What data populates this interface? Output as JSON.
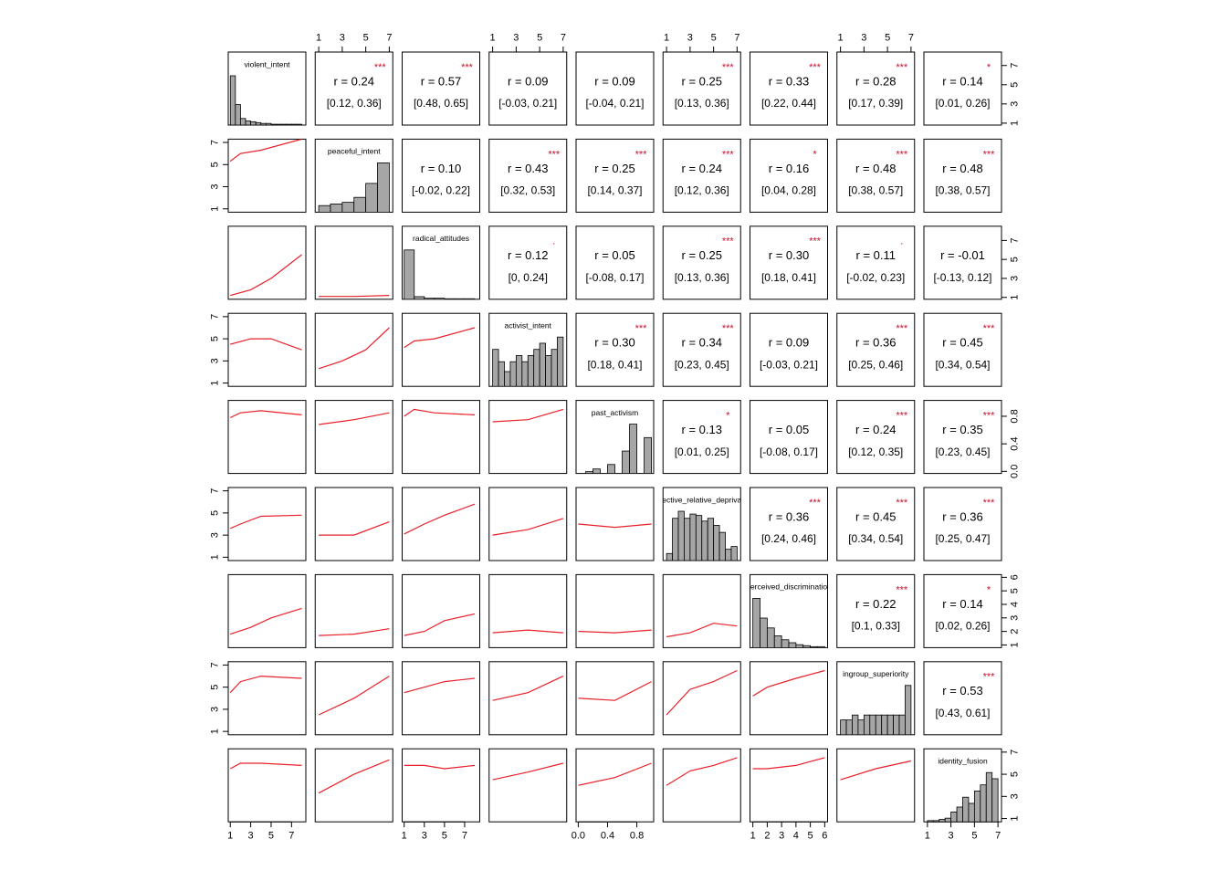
{
  "chart_data": {
    "type": "scatter-matrix",
    "variables": [
      {
        "name": "violent_intent",
        "lim": [
          0.8,
          8.4
        ],
        "ticks": [
          1,
          3,
          5,
          7
        ],
        "bins": [
          1,
          1.5,
          2,
          2.5,
          3,
          3.5,
          4,
          4.5,
          5,
          5.5,
          6,
          6.5,
          7,
          7.5,
          8
        ],
        "counts": [
          60,
          25,
          8,
          5,
          4,
          3,
          2,
          2,
          1,
          1,
          1,
          1,
          1,
          1
        ]
      },
      {
        "name": "peaceful_intent",
        "lim": [
          0.7,
          7.3
        ],
        "ticks": [
          1,
          3,
          5,
          7
        ],
        "bins": [
          1,
          2,
          3,
          4,
          5,
          6,
          7
        ],
        "counts": [
          8,
          10,
          12,
          18,
          35,
          60
        ]
      },
      {
        "name": "radical_attitudes",
        "lim": [
          0.8,
          8.5
        ],
        "ticks": [
          1,
          3,
          5,
          7
        ],
        "bins": [
          1,
          2,
          3,
          4,
          5,
          6,
          7,
          8
        ],
        "counts": [
          95,
          5,
          2,
          2,
          1,
          1,
          1
        ]
      },
      {
        "name": "activist_intent",
        "lim": [
          0.7,
          7.3
        ],
        "ticks": [
          1,
          3,
          5,
          7
        ],
        "bins": [
          1,
          1.5,
          2,
          2.5,
          3,
          3.5,
          4,
          4.5,
          5,
          5.5,
          6,
          6.5,
          7
        ],
        "counts": [
          30,
          20,
          12,
          20,
          25,
          20,
          25,
          30,
          35,
          25,
          30,
          40
        ]
      },
      {
        "name": "past_activism",
        "lim": [
          -0.03,
          1.03
        ],
        "ticks": [
          {
            "value": 0,
            "label": "0.0"
          },
          {
            "value": 0.4,
            "label": "0.4"
          },
          {
            "value": 0.8,
            "label": "0.8"
          }
        ],
        "bins": [
          0,
          0.1,
          0.2,
          0.3,
          0.4,
          0.5,
          0.6,
          0.7,
          0.8,
          0.9,
          1
        ],
        "counts": [
          0,
          2,
          5,
          0,
          10,
          0,
          25,
          55,
          0,
          40
        ]
      },
      {
        "name": "ective_relative_depriva",
        "lim": [
          0.7,
          7.3
        ],
        "ticks": [
          1,
          3,
          5,
          7
        ],
        "bins": [
          1,
          1.5,
          2,
          2.5,
          3,
          3.5,
          4,
          4.5,
          5,
          5.5,
          6,
          6.5,
          7
        ],
        "counts": [
          5,
          30,
          35,
          30,
          33,
          32,
          28,
          30,
          25,
          20,
          8,
          10
        ]
      },
      {
        "name": "erceived_discriminatio",
        "lim": [
          0.8,
          6.2
        ],
        "ticks": [
          1,
          2,
          3,
          4,
          5,
          6
        ],
        "bins": [
          1,
          1.5,
          2,
          2.5,
          3,
          3.5,
          4,
          4.5,
          5,
          5.5,
          6
        ],
        "counts": [
          50,
          30,
          20,
          12,
          8,
          5,
          3,
          2,
          1,
          1
        ]
      },
      {
        "name": "ingroup_superiority",
        "lim": [
          0.7,
          7.3
        ],
        "ticks": [
          1,
          3,
          5,
          7
        ],
        "bins": [
          1,
          1.5,
          2,
          2.5,
          3,
          3.5,
          4,
          4.5,
          5,
          5.5,
          6,
          6.5,
          7
        ],
        "counts": [
          15,
          15,
          20,
          15,
          20,
          20,
          20,
          20,
          20,
          20,
          20,
          50
        ]
      },
      {
        "name": "identity_fusion",
        "lim": [
          0.7,
          7.3
        ],
        "ticks": [
          1,
          3,
          5,
          7
        ],
        "bins": [
          1,
          1.5,
          2,
          2.5,
          3,
          3.5,
          4,
          4.5,
          5,
          5.5,
          6,
          6.5,
          7
        ],
        "counts": [
          1,
          1,
          2,
          3,
          8,
          12,
          20,
          15,
          25,
          30,
          40,
          35
        ]
      }
    ],
    "correlations": [
      {
        "row": 0,
        "col": 1,
        "r": {
          "value": 0.24,
          "label": "r = 0.24"
        },
        "ci": "[0.12, 0.36]",
        "sig": "***"
      },
      {
        "row": 0,
        "col": 2,
        "r": {
          "value": 0.57,
          "label": "r = 0.57"
        },
        "ci": "[0.48, 0.65]",
        "sig": "***"
      },
      {
        "row": 0,
        "col": 3,
        "r": {
          "value": 0.09,
          "label": "r = 0.09"
        },
        "ci": "[-0.03, 0.21]"
      },
      {
        "row": 0,
        "col": 4,
        "r": {
          "value": 0.09,
          "label": "r = 0.09"
        },
        "ci": "[-0.04, 0.21]"
      },
      {
        "row": 0,
        "col": 5,
        "r": {
          "value": 0.25,
          "label": "r = 0.25"
        },
        "ci": "[0.13, 0.36]",
        "sig": "***"
      },
      {
        "row": 0,
        "col": 6,
        "r": {
          "value": 0.33,
          "label": "r = 0.33"
        },
        "ci": "[0.22, 0.44]",
        "sig": "***"
      },
      {
        "row": 0,
        "col": 7,
        "r": {
          "value": 0.28,
          "label": "r = 0.28"
        },
        "ci": "[0.17, 0.39]",
        "sig": "***"
      },
      {
        "row": 0,
        "col": 8,
        "r": {
          "value": 0.14,
          "label": "r = 0.14"
        },
        "ci": "[0.01, 0.26]",
        "sig": "*"
      },
      {
        "row": 1,
        "col": 2,
        "r": {
          "value": 0.1,
          "label": "r = 0.10"
        },
        "ci": "[-0.02, 0.22]"
      },
      {
        "row": 1,
        "col": 3,
        "r": {
          "value": 0.43,
          "label": "r = 0.43"
        },
        "ci": "[0.32, 0.53]",
        "sig": "***"
      },
      {
        "row": 1,
        "col": 4,
        "r": {
          "value": 0.25,
          "label": "r = 0.25"
        },
        "ci": "[0.14, 0.37]",
        "sig": "***"
      },
      {
        "row": 1,
        "col": 5,
        "r": {
          "value": 0.24,
          "label": "r = 0.24"
        },
        "ci": "[0.12, 0.36]",
        "sig": "***"
      },
      {
        "row": 1,
        "col": 6,
        "r": {
          "value": 0.16,
          "label": "r = 0.16"
        },
        "ci": "[0.04, 0.28]",
        "sig": "*"
      },
      {
        "row": 1,
        "col": 7,
        "r": {
          "value": 0.48,
          "label": "r = 0.48"
        },
        "ci": "[0.38, 0.57]",
        "sig": "***"
      },
      {
        "row": 1,
        "col": 8,
        "r": {
          "value": 0.48,
          "label": "r = 0.48"
        },
        "ci": "[0.38, 0.57]",
        "sig": "***"
      },
      {
        "row": 2,
        "col": 3,
        "r": {
          "value": 0.12,
          "label": "r = 0.12"
        },
        "ci": "[0, 0.24]",
        "sig": "."
      },
      {
        "row": 2,
        "col": 4,
        "r": {
          "value": 0.05,
          "label": "r = 0.05"
        },
        "ci": "[-0.08, 0.17]"
      },
      {
        "row": 2,
        "col": 5,
        "r": {
          "value": 0.25,
          "label": "r = 0.25"
        },
        "ci": "[0.13, 0.36]",
        "sig": "***"
      },
      {
        "row": 2,
        "col": 6,
        "r": {
          "value": 0.3,
          "label": "r = 0.30"
        },
        "ci": "[0.18, 0.41]",
        "sig": "***"
      },
      {
        "row": 2,
        "col": 7,
        "r": {
          "value": 0.11,
          "label": "r = 0.11"
        },
        "ci": "[-0.02, 0.23]",
        "sig": "."
      },
      {
        "row": 2,
        "col": 8,
        "r": {
          "value": -0.01,
          "label": "r = -0.01"
        },
        "ci": "[-0.13, 0.12]"
      },
      {
        "row": 3,
        "col": 4,
        "r": {
          "value": 0.3,
          "label": "r = 0.30"
        },
        "ci": "[0.18, 0.41]",
        "sig": "***"
      },
      {
        "row": 3,
        "col": 5,
        "r": {
          "value": 0.34,
          "label": "r = 0.34"
        },
        "ci": "[0.23, 0.45]",
        "sig": "***"
      },
      {
        "row": 3,
        "col": 6,
        "r": {
          "value": 0.09,
          "label": "r = 0.09"
        },
        "ci": "[-0.03, 0.21]"
      },
      {
        "row": 3,
        "col": 7,
        "r": {
          "value": 0.36,
          "label": "r = 0.36"
        },
        "ci": "[0.25, 0.46]",
        "sig": "***"
      },
      {
        "row": 3,
        "col": 8,
        "r": {
          "value": 0.45,
          "label": "r = 0.45"
        },
        "ci": "[0.34, 0.54]",
        "sig": "***"
      },
      {
        "row": 4,
        "col": 5,
        "r": {
          "value": 0.13,
          "label": "r = 0.13"
        },
        "ci": "[0.01, 0.25]",
        "sig": "*"
      },
      {
        "row": 4,
        "col": 6,
        "r": {
          "value": 0.05,
          "label": "r = 0.05"
        },
        "ci": "[-0.08, 0.17]"
      },
      {
        "row": 4,
        "col": 7,
        "r": {
          "value": 0.24,
          "label": "r = 0.24"
        },
        "ci": "[0.12, 0.35]",
        "sig": "***"
      },
      {
        "row": 4,
        "col": 8,
        "r": {
          "value": 0.35,
          "label": "r = 0.35"
        },
        "ci": "[0.23, 0.45]",
        "sig": "***"
      },
      {
        "row": 5,
        "col": 6,
        "r": {
          "value": 0.36,
          "label": "r = 0.36"
        },
        "ci": "[0.24, 0.46]",
        "sig": "***"
      },
      {
        "row": 5,
        "col": 7,
        "r": {
          "value": 0.45,
          "label": "r = 0.45"
        },
        "ci": "[0.34, 0.54]",
        "sig": "***"
      },
      {
        "row": 5,
        "col": 8,
        "r": {
          "value": 0.36,
          "label": "r = 0.36"
        },
        "ci": "[0.25, 0.47]",
        "sig": "***"
      },
      {
        "row": 6,
        "col": 7,
        "r": {
          "value": 0.22,
          "label": "r = 0.22"
        },
        "ci": "[0.1, 0.33]",
        "sig": "***"
      },
      {
        "row": 6,
        "col": 8,
        "r": {
          "value": 0.14,
          "label": "r = 0.14"
        },
        "ci": "[0.02, 0.26]",
        "sig": "*"
      },
      {
        "row": 7,
        "col": 8,
        "r": {
          "value": 0.53,
          "label": "r = 0.53"
        },
        "ci": "[0.43, 0.61]",
        "sig": "***"
      }
    ],
    "smooths": [
      {
        "row": 1,
        "col": 0,
        "x": [
          1,
          2,
          4,
          8
        ],
        "y": [
          5.3,
          6,
          6.3,
          7.3
        ]
      },
      {
        "row": 2,
        "col": 0,
        "x": [
          1,
          3,
          5,
          8
        ],
        "y": [
          1.2,
          1.8,
          3,
          5.5
        ]
      },
      {
        "row": 2,
        "col": 1,
        "x": [
          1,
          4,
          7
        ],
        "y": [
          1.1,
          1.1,
          1.2
        ]
      },
      {
        "row": 3,
        "col": 0,
        "x": [
          1,
          3,
          5,
          8
        ],
        "y": [
          4.5,
          5,
          5,
          4
        ]
      },
      {
        "row": 3,
        "col": 1,
        "x": [
          1,
          3,
          5,
          7
        ],
        "y": [
          2.3,
          3,
          4,
          6
        ]
      },
      {
        "row": 3,
        "col": 2,
        "x": [
          1,
          2,
          4,
          8
        ],
        "y": [
          4.2,
          4.8,
          5,
          6
        ]
      },
      {
        "row": 4,
        "col": 0,
        "x": [
          1,
          2,
          4,
          8
        ],
        "y": [
          0.78,
          0.85,
          0.88,
          0.82
        ]
      },
      {
        "row": 4,
        "col": 1,
        "x": [
          1,
          4,
          7
        ],
        "y": [
          0.68,
          0.75,
          0.85
        ]
      },
      {
        "row": 4,
        "col": 2,
        "x": [
          1,
          2,
          4,
          8
        ],
        "y": [
          0.8,
          0.9,
          0.85,
          0.82
        ]
      },
      {
        "row": 4,
        "col": 3,
        "x": [
          1,
          4,
          7
        ],
        "y": [
          0.72,
          0.75,
          0.9
        ]
      },
      {
        "row": 5,
        "col": 0,
        "x": [
          1,
          2,
          4,
          8
        ],
        "y": [
          3.6,
          4,
          4.7,
          4.8
        ]
      },
      {
        "row": 5,
        "col": 1,
        "x": [
          1,
          4,
          7
        ],
        "y": [
          3,
          3,
          4.2
        ]
      },
      {
        "row": 5,
        "col": 2,
        "x": [
          1,
          3,
          5,
          8
        ],
        "y": [
          3.1,
          4,
          4.8,
          5.8
        ]
      },
      {
        "row": 5,
        "col": 3,
        "x": [
          1,
          4,
          7
        ],
        "y": [
          3,
          3.5,
          4.5
        ]
      },
      {
        "row": 5,
        "col": 4,
        "x": [
          0,
          0.5,
          1
        ],
        "y": [
          4,
          3.7,
          4
        ]
      },
      {
        "row": 6,
        "col": 0,
        "x": [
          1,
          3,
          5,
          8
        ],
        "y": [
          1.8,
          2.3,
          3,
          3.7
        ]
      },
      {
        "row": 6,
        "col": 1,
        "x": [
          1,
          4,
          7
        ],
        "y": [
          1.7,
          1.8,
          2.2
        ]
      },
      {
        "row": 6,
        "col": 2,
        "x": [
          1,
          3,
          5,
          8
        ],
        "y": [
          1.7,
          2,
          2.8,
          3.3
        ]
      },
      {
        "row": 6,
        "col": 3,
        "x": [
          1,
          4,
          7
        ],
        "y": [
          1.9,
          2.1,
          1.9
        ]
      },
      {
        "row": 6,
        "col": 4,
        "x": [
          0,
          0.5,
          1
        ],
        "y": [
          2,
          1.9,
          2.1
        ]
      },
      {
        "row": 6,
        "col": 5,
        "x": [
          1,
          3,
          5,
          7
        ],
        "y": [
          1.6,
          1.9,
          2.6,
          2.4
        ]
      },
      {
        "row": 7,
        "col": 0,
        "x": [
          1,
          2,
          4,
          8
        ],
        "y": [
          4.5,
          5.5,
          6,
          5.8
        ]
      },
      {
        "row": 7,
        "col": 1,
        "x": [
          1,
          4,
          7
        ],
        "y": [
          2.5,
          4,
          6
        ]
      },
      {
        "row": 7,
        "col": 2,
        "x": [
          1,
          3,
          5,
          8
        ],
        "y": [
          4.5,
          5,
          5.5,
          5.8
        ]
      },
      {
        "row": 7,
        "col": 3,
        "x": [
          1,
          4,
          7
        ],
        "y": [
          3.8,
          4.5,
          6
        ]
      },
      {
        "row": 7,
        "col": 4,
        "x": [
          0,
          0.5,
          1
        ],
        "y": [
          4,
          3.8,
          5.5
        ]
      },
      {
        "row": 7,
        "col": 5,
        "x": [
          1,
          3,
          5,
          7
        ],
        "y": [
          2.5,
          4.8,
          5.5,
          6.5
        ]
      },
      {
        "row": 7,
        "col": 6,
        "x": [
          1,
          2,
          4,
          6
        ],
        "y": [
          4.2,
          5,
          5.8,
          6.5
        ]
      },
      {
        "row": 8,
        "col": 0,
        "x": [
          1,
          2,
          4,
          8
        ],
        "y": [
          5.5,
          6,
          6,
          5.8
        ]
      },
      {
        "row": 8,
        "col": 1,
        "x": [
          1,
          4,
          7
        ],
        "y": [
          3.3,
          5,
          6.3
        ]
      },
      {
        "row": 8,
        "col": 2,
        "x": [
          1,
          3,
          5,
          8
        ],
        "y": [
          5.8,
          5.8,
          5.5,
          5.8
        ]
      },
      {
        "row": 8,
        "col": 3,
        "x": [
          1,
          4,
          7
        ],
        "y": [
          4.5,
          5.2,
          6
        ]
      },
      {
        "row": 8,
        "col": 4,
        "x": [
          0,
          0.5,
          1
        ],
        "y": [
          4,
          4.7,
          6
        ]
      },
      {
        "row": 8,
        "col": 5,
        "x": [
          1,
          3,
          5,
          7
        ],
        "y": [
          4,
          5.3,
          5.8,
          6.5
        ]
      },
      {
        "row": 8,
        "col": 6,
        "x": [
          1,
          2,
          4,
          6
        ],
        "y": [
          5.5,
          5.5,
          5.8,
          6.5
        ]
      },
      {
        "row": 8,
        "col": 7,
        "x": [
          1,
          4,
          7
        ],
        "y": [
          4.5,
          5.5,
          6.2
        ]
      }
    ],
    "hist_color": "#a6a6a6",
    "smooth_color": "#e8202a",
    "sig_color": "#c8102e"
  }
}
